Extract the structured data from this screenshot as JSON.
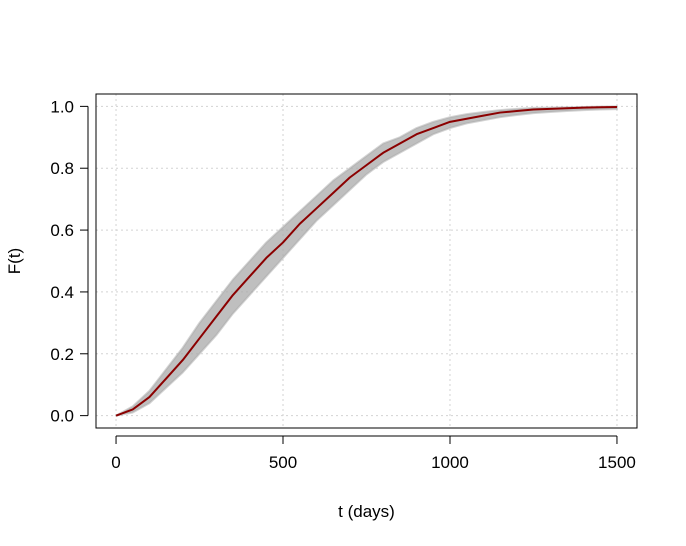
{
  "chart_data": {
    "type": "line",
    "title": "",
    "xlabel": "t (days)",
    "ylabel": "F(t)",
    "xlim": [
      -60,
      1560
    ],
    "ylim": [
      -0.04,
      1.04
    ],
    "x_ticks": [
      0,
      500,
      1000,
      1500
    ],
    "y_ticks": [
      0.0,
      0.2,
      0.4,
      0.6,
      0.8,
      1.0
    ],
    "x_tick_labels": [
      "0",
      "500",
      "1000",
      "1500"
    ],
    "y_tick_labels": [
      "0.0",
      "0.2",
      "0.4",
      "0.6",
      "0.8",
      "1.0"
    ],
    "grid": true,
    "legend": "none",
    "series": [
      {
        "x": [
          0,
          50,
          100,
          150,
          200,
          250,
          300,
          350,
          400,
          450,
          500,
          550,
          600,
          650,
          700,
          750,
          800,
          850,
          900,
          950,
          1000,
          1050,
          1100,
          1150,
          1200,
          1250,
          1300,
          1350,
          1400,
          1450,
          1500
        ],
        "y": [
          0.0,
          0.02,
          0.06,
          0.12,
          0.18,
          0.25,
          0.32,
          0.39,
          0.45,
          0.51,
          0.56,
          0.62,
          0.67,
          0.72,
          0.77,
          0.81,
          0.85,
          0.88,
          0.91,
          0.93,
          0.95,
          0.96,
          0.97,
          0.98,
          0.985,
          0.99,
          0.992,
          0.994,
          0.996,
          0.997,
          0.998
        ],
        "color": "#8b0000"
      }
    ],
    "band": {
      "x": [
        0,
        50,
        100,
        150,
        200,
        250,
        300,
        350,
        400,
        450,
        500,
        550,
        600,
        650,
        700,
        750,
        800,
        850,
        900,
        950,
        1000,
        1050,
        1100,
        1150,
        1200,
        1250,
        1300,
        1350,
        1400,
        1450,
        1500
      ],
      "lower": [
        0.0,
        0.01,
        0.04,
        0.09,
        0.14,
        0.2,
        0.26,
        0.33,
        0.39,
        0.45,
        0.51,
        0.57,
        0.63,
        0.68,
        0.73,
        0.78,
        0.82,
        0.85,
        0.88,
        0.91,
        0.93,
        0.945,
        0.955,
        0.965,
        0.972,
        0.978,
        0.982,
        0.985,
        0.988,
        0.99,
        0.991
      ],
      "upper": [
        0.0,
        0.03,
        0.08,
        0.15,
        0.22,
        0.3,
        0.37,
        0.44,
        0.5,
        0.56,
        0.61,
        0.66,
        0.71,
        0.76,
        0.8,
        0.84,
        0.88,
        0.9,
        0.93,
        0.95,
        0.965,
        0.975,
        0.982,
        0.988,
        0.992,
        0.995,
        0.996,
        0.997,
        0.998,
        0.999,
        1.0
      ],
      "color": "#a9a9a9"
    }
  }
}
